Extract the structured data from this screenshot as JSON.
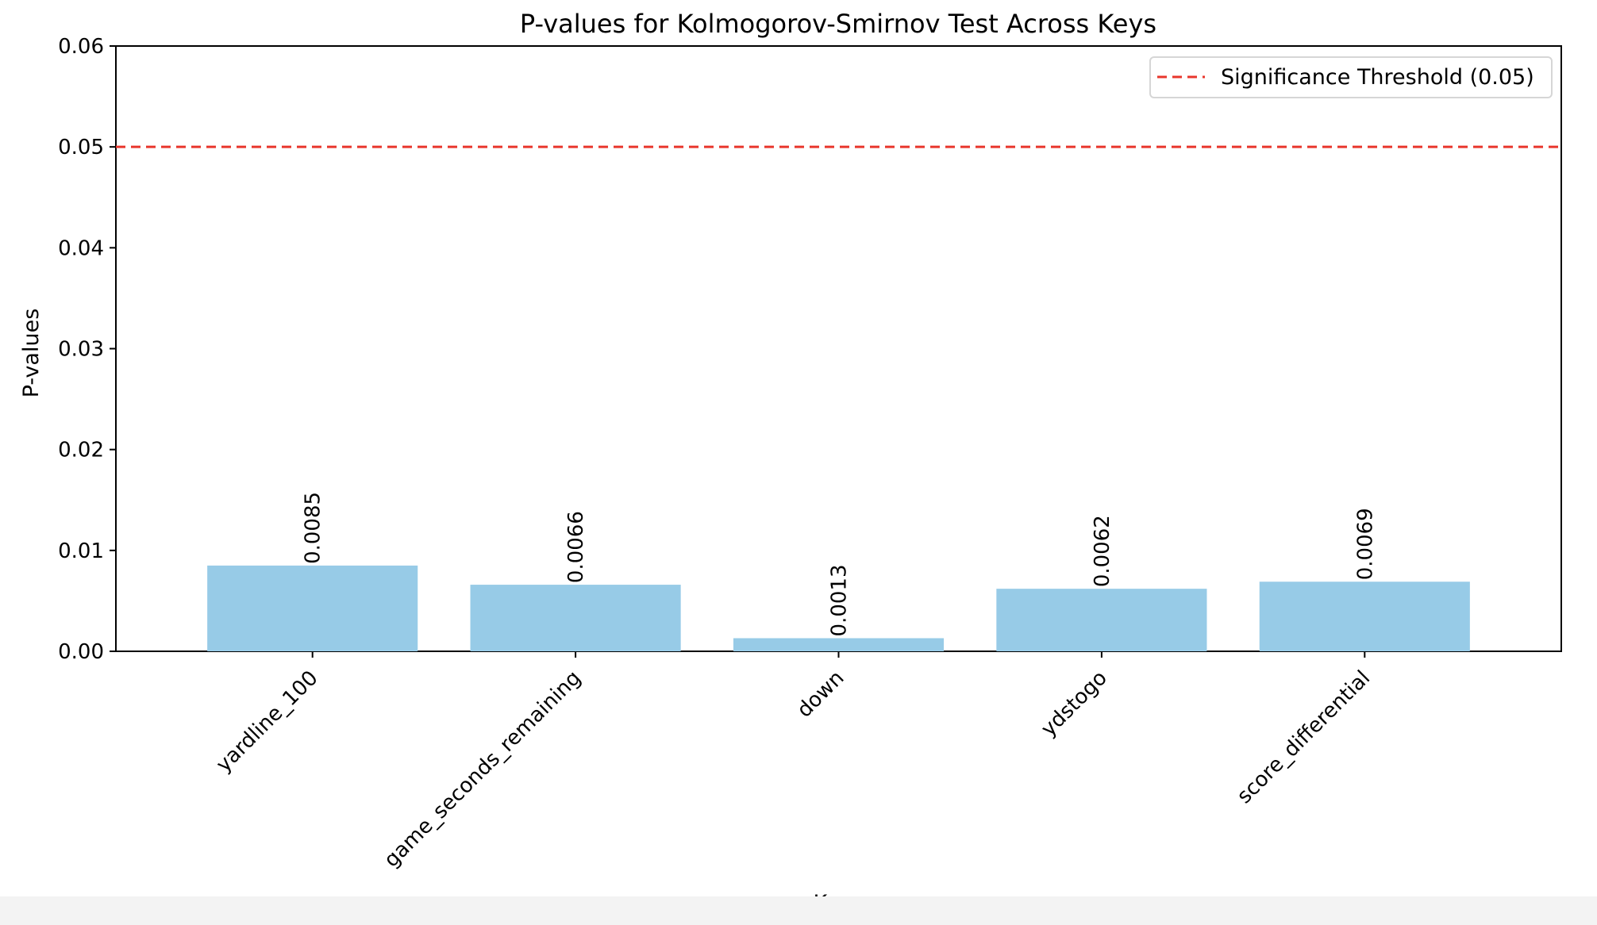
{
  "chart_data": {
    "type": "bar",
    "title": "P-values for Kolmogorov-Smirnov Test Across Keys",
    "xlabel": "Keys",
    "ylabel": "P-values",
    "categories": [
      "yardline_100",
      "game_seconds_remaining",
      "down",
      "ydstogo",
      "score_differential"
    ],
    "values": [
      0.0085,
      0.0066,
      0.0013,
      0.0062,
      0.0069
    ],
    "value_labels": [
      "0.0085",
      "0.0066",
      "0.0013",
      "0.0062",
      "0.0069"
    ],
    "ylim": [
      0,
      0.06
    ],
    "yticks": [
      0,
      0.01,
      0.02,
      0.03,
      0.04,
      0.05,
      0.06
    ],
    "ytick_labels": [
      "0.00",
      "0.01",
      "0.02",
      "0.03",
      "0.04",
      "0.05",
      "0.06"
    ],
    "grid": false,
    "bar_color": "#97cbe7",
    "threshold": {
      "value": 0.05,
      "label": "Significance Threshold (0.05)",
      "color": "#e8362c",
      "style": "dashed"
    },
    "legend": {
      "placement": "top-right",
      "entries": [
        "Significance Threshold (0.05)"
      ]
    }
  }
}
